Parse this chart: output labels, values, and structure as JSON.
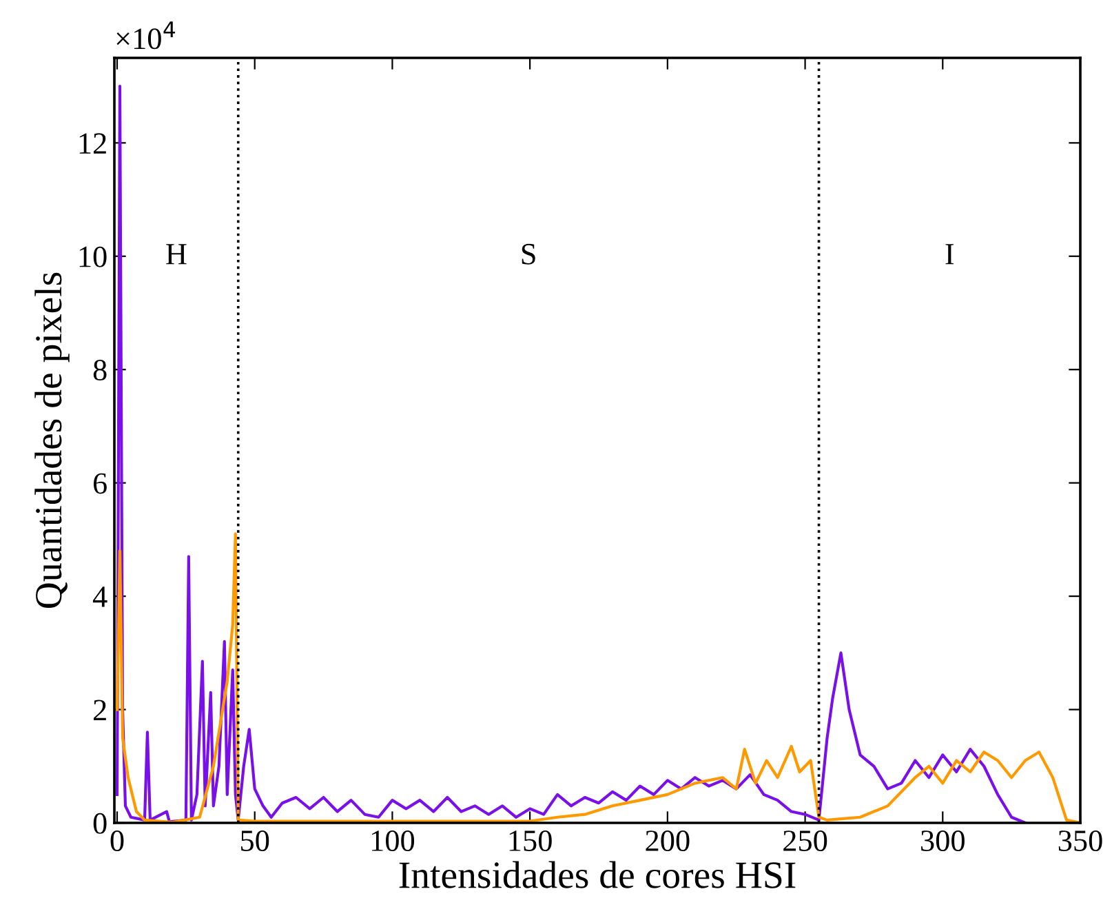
{
  "chart_data": {
    "type": "line",
    "xlabel": "Intensidades de cores HSI",
    "ylabel": "Quantidades de pixels",
    "x": [
      0,
      1,
      2,
      3,
      5,
      10,
      11,
      12,
      18,
      19,
      25,
      26,
      27,
      29,
      31,
      32,
      34,
      35,
      37,
      39,
      40,
      42,
      43,
      44,
      46,
      48,
      50,
      53,
      56,
      60,
      65,
      70,
      75,
      80,
      85,
      90,
      95,
      100,
      105,
      110,
      115,
      120,
      125,
      130,
      135,
      140,
      145,
      150,
      155,
      160,
      165,
      170,
      175,
      180,
      185,
      190,
      195,
      200,
      205,
      210,
      215,
      220,
      225,
      230,
      235,
      240,
      245,
      250,
      255,
      258,
      260,
      263,
      266,
      270,
      275,
      280,
      285,
      290,
      295,
      300,
      305,
      310,
      315,
      320,
      325,
      330
    ],
    "series": [
      {
        "color": "#7a10e8",
        "values": [
          0.5,
          13,
          2,
          0.3,
          0.1,
          0.05,
          1.6,
          0.05,
          0.2,
          0.02,
          0.05,
          4.7,
          0.05,
          0.5,
          2.85,
          0.3,
          2.3,
          0.3,
          1,
          3.2,
          0.5,
          2.7,
          0.5,
          0.05,
          1,
          1.65,
          0.6,
          0.3,
          0.1,
          0.35,
          0.45,
          0.25,
          0.45,
          0.2,
          0.4,
          0.15,
          0.1,
          0.4,
          0.25,
          0.4,
          0.2,
          0.45,
          0.2,
          0.3,
          0.15,
          0.3,
          0.1,
          0.25,
          0.15,
          0.5,
          0.3,
          0.45,
          0.35,
          0.55,
          0.4,
          0.65,
          0.5,
          0.75,
          0.6,
          0.8,
          0.65,
          0.75,
          0.6,
          0.85,
          0.5,
          0.4,
          0.2,
          0.15,
          0.05,
          1.5,
          2.2,
          3,
          2,
          1.2,
          1,
          0.6,
          0.7,
          1.1,
          0.8,
          1.2,
          0.9,
          1.3,
          1,
          0.5,
          0.1,
          0
        ]
      },
      {
        "color": "#ff9900",
        "x": [
          0,
          1,
          2,
          4,
          7,
          10,
          20,
          30,
          35,
          38,
          40,
          42,
          43,
          44,
          50,
          100,
          150,
          160,
          170,
          180,
          190,
          200,
          210,
          220,
          225,
          228,
          232,
          236,
          240,
          245,
          248,
          252,
          255,
          258,
          270,
          280,
          290,
          295,
          300,
          305,
          310,
          315,
          320,
          325,
          330,
          335,
          340,
          345,
          350
        ],
        "values": [
          2,
          4.8,
          1.5,
          0.8,
          0.2,
          0.05,
          0.01,
          0.1,
          1,
          1.9,
          2.5,
          3.5,
          5.1,
          0.05,
          0.03,
          0.03,
          0.03,
          0.1,
          0.15,
          0.3,
          0.4,
          0.5,
          0.7,
          0.8,
          0.6,
          1.3,
          0.7,
          1.1,
          0.8,
          1.35,
          0.9,
          1.1,
          0.1,
          0.05,
          0.1,
          0.3,
          0.8,
          1,
          0.7,
          1.1,
          0.9,
          1.25,
          1.1,
          0.8,
          1.1,
          1.25,
          0.8,
          0.05,
          0
        ]
      }
    ],
    "xlim": [
      -1,
      350
    ],
    "xticks": [
      0,
      50,
      100,
      150,
      200,
      250,
      300,
      350
    ],
    "ylim": [
      0,
      13.5
    ],
    "yticks": [
      0,
      2,
      4,
      6,
      8,
      10,
      12
    ],
    "ref_lines": [
      {
        "axis": "x",
        "value": 44,
        "line_style": "dotted",
        "color": "#000000"
      },
      {
        "axis": "x",
        "value": 255,
        "line_style": "dotted",
        "color": "#000000"
      }
    ],
    "annotations": [
      "×10$^{4}$",
      "H",
      "S",
      "I"
    ],
    "grid": false,
    "legend": false
  }
}
